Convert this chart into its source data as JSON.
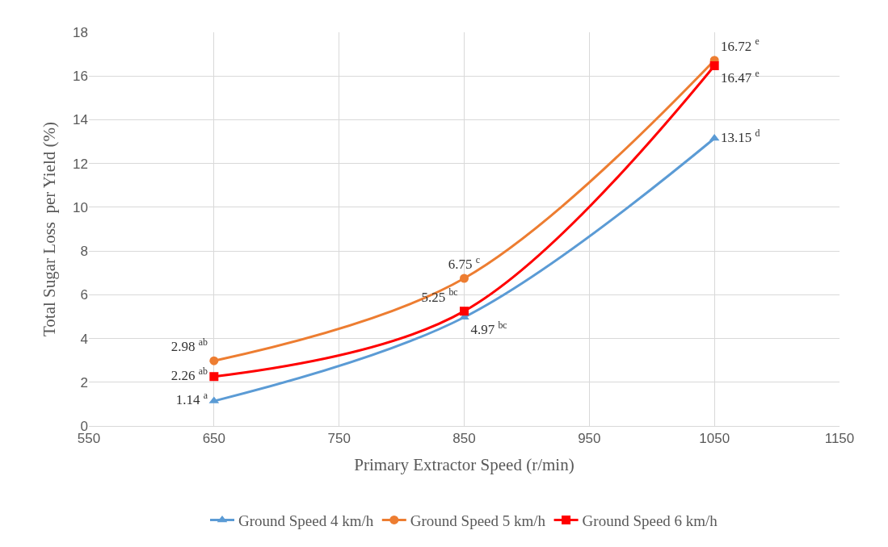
{
  "chart_data": {
    "type": "line",
    "xlabel": "Primary Extractor Speed (r/min)",
    "ylabel": "Total Sugar Loss  per Yield (%)",
    "x": [
      650,
      850,
      1050
    ],
    "series": [
      {
        "name": "Ground Speed 4 km/h",
        "color": "#5b9bd5",
        "marker": "triangle",
        "values": [
          1.14,
          4.97,
          13.15
        ],
        "value_labels": [
          "1.14 $^{a}$",
          "4.97 $^{bc}$",
          "13.15 $^{d}$"
        ]
      },
      {
        "name": "Ground Speed 5 km/h",
        "color": "#ed7d31",
        "marker": "circle",
        "values": [
          2.98,
          6.75,
          16.72
        ],
        "value_labels": [
          "2.98 $^{ab}$",
          "6.75 $^{c}$",
          "16.72 $^{e}$"
        ]
      },
      {
        "name": "Ground Speed 6 km/h",
        "color": "#ff0000",
        "marker": "square",
        "values": [
          2.26,
          5.25,
          16.47
        ],
        "value_labels": [
          "2.26 $^{ab}$",
          "5.25 $^{bc}$",
          "16.47 $^{e}$"
        ]
      }
    ],
    "xlim": [
      550,
      1150
    ],
    "xticks": [
      550,
      650,
      750,
      850,
      950,
      1050,
      1150
    ],
    "ylim": [
      0,
      18
    ],
    "yticks": [
      0,
      2,
      4,
      6,
      8,
      10,
      12,
      14,
      16,
      18
    ],
    "grid": true,
    "legend": "bottom",
    "line_style": "solid"
  }
}
